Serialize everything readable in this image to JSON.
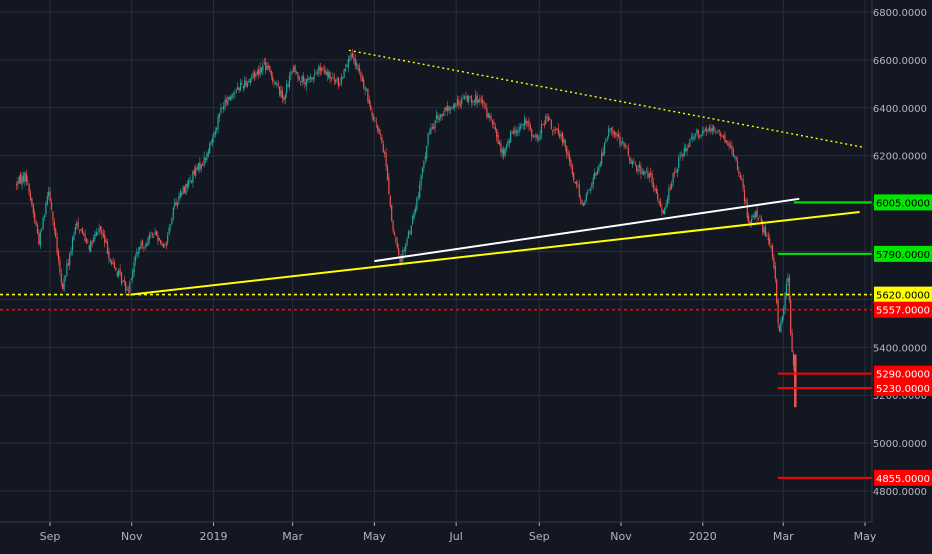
{
  "colors": {
    "background": "#131722",
    "grid": "#2a2e39",
    "axis_text": "#b2b5be",
    "candle_up": "#26a69a",
    "candle_down": "#ef5350",
    "support_yellow": "#ffff00",
    "support_white": "#ffffff",
    "level_green": "#00e600",
    "level_red": "#ff0000"
  },
  "chart_data": {
    "type": "candlestick",
    "title": "",
    "xlabel": "",
    "ylabel": "",
    "ylim": [
      4760,
      6840
    ],
    "grid": true,
    "x_ticks": [
      "Sep",
      "Nov",
      "2019",
      "Mar",
      "May",
      "Jul",
      "Sep",
      "Nov",
      "2020",
      "Mar",
      "May"
    ],
    "y_ticks": [
      "6800.0000",
      "6600.0000",
      "6400.0000",
      "6200.0000",
      "6000.0000",
      "5800.0000",
      "5600.0000",
      "5400.0000",
      "5200.0000",
      "5000.0000",
      "4800.0000"
    ],
    "close_path": [
      [
        "2018-08-06",
        6080
      ],
      [
        "2018-08-14",
        6120
      ],
      [
        "2018-08-24",
        5840
      ],
      [
        "2018-08-31",
        6070
      ],
      [
        "2018-09-10",
        5640
      ],
      [
        "2018-09-21",
        5920
      ],
      [
        "2018-10-01",
        5820
      ],
      [
        "2018-10-08",
        5900
      ],
      [
        "2018-10-18",
        5740
      ],
      [
        "2018-10-29",
        5640
      ],
      [
        "2018-11-05",
        5800
      ],
      [
        "2018-11-18",
        5880
      ],
      [
        "2018-11-26",
        5820
      ],
      [
        "2018-12-03",
        6000
      ],
      [
        "2018-12-17",
        6120
      ],
      [
        "2018-12-27",
        6200
      ],
      [
        "2019-01-07",
        6400
      ],
      [
        "2019-01-18",
        6480
      ],
      [
        "2019-01-28",
        6520
      ],
      [
        "2019-02-08",
        6580
      ],
      [
        "2019-02-15",
        6520
      ],
      [
        "2019-02-22",
        6440
      ],
      [
        "2019-03-01",
        6560
      ],
      [
        "2019-03-11",
        6500
      ],
      [
        "2019-03-21",
        6560
      ],
      [
        "2019-04-05",
        6500
      ],
      [
        "2019-04-12",
        6620
      ],
      [
        "2019-04-19",
        6560
      ],
      [
        "2019-04-26",
        6440
      ],
      [
        "2019-05-02",
        6340
      ],
      [
        "2019-05-09",
        6200
      ],
      [
        "2019-05-15",
        5880
      ],
      [
        "2019-05-20",
        5760
      ],
      [
        "2019-05-27",
        5880
      ],
      [
        "2019-06-03",
        6040
      ],
      [
        "2019-06-10",
        6280
      ],
      [
        "2019-06-17",
        6360
      ],
      [
        "2019-06-27",
        6400
      ],
      [
        "2019-07-08",
        6440
      ],
      [
        "2019-07-15",
        6440
      ],
      [
        "2019-07-22",
        6400
      ],
      [
        "2019-07-29",
        6320
      ],
      [
        "2019-08-05",
        6200
      ],
      [
        "2019-08-12",
        6300
      ],
      [
        "2019-08-22",
        6340
      ],
      [
        "2019-08-30",
        6260
      ],
      [
        "2019-09-06",
        6360
      ],
      [
        "2019-09-13",
        6300
      ],
      [
        "2019-09-20",
        6260
      ],
      [
        "2019-09-27",
        6100
      ],
      [
        "2019-10-04",
        6000
      ],
      [
        "2019-10-15",
        6150
      ],
      [
        "2019-10-24",
        6320
      ],
      [
        "2019-11-01",
        6260
      ],
      [
        "2019-11-11",
        6160
      ],
      [
        "2019-11-22",
        6120
      ],
      [
        "2019-12-02",
        5960
      ],
      [
        "2019-12-09",
        6100
      ],
      [
        "2019-12-16",
        6200
      ],
      [
        "2019-12-26",
        6300
      ],
      [
        "2020-01-02",
        6300
      ],
      [
        "2020-01-09",
        6320
      ],
      [
        "2020-01-16",
        6280
      ],
      [
        "2020-01-23",
        6220
      ],
      [
        "2020-01-30",
        6100
      ],
      [
        "2020-02-04",
        5920
      ],
      [
        "2020-02-10",
        5970
      ],
      [
        "2020-02-17",
        5860
      ],
      [
        "2020-02-21",
        5820
      ],
      [
        "2020-02-24",
        5680
      ],
      [
        "2020-02-27",
        5450
      ],
      [
        "2020-03-02",
        5600
      ],
      [
        "2020-03-05",
        5720
      ],
      [
        "2020-03-06",
        5480
      ],
      [
        "2020-03-09",
        5300
      ]
    ],
    "annotations": {
      "price_levels": [
        {
          "label": "6005.0000",
          "value": 6005,
          "color": "green",
          "start": "2020-03-09"
        },
        {
          "label": "5790.0000",
          "value": 5790,
          "color": "green",
          "start": "2020-02-26"
        },
        {
          "label": "5620.0000",
          "value": 5620,
          "color": "yellow",
          "style": "dotted"
        },
        {
          "label": "5557.0000",
          "value": 5557,
          "color": "red",
          "style": "dotted"
        },
        {
          "label": "5290.0000",
          "value": 5290,
          "color": "red",
          "start": "2020-02-26"
        },
        {
          "label": "5230.0000",
          "value": 5230,
          "color": "red",
          "start": "2020-02-26"
        },
        {
          "label": "4855.0000",
          "value": 4855,
          "color": "red",
          "start": "2020-02-26"
        }
      ],
      "trendlines": [
        {
          "color": "yellow",
          "style": "dotted",
          "points": [
            [
              "2019-04-12",
              6640
            ],
            [
              "2020-04-30",
              6235
            ]
          ]
        },
        {
          "color": "yellow",
          "style": "solid",
          "points": [
            [
              "2018-10-31",
              5620
            ],
            [
              "2020-04-27",
              5965
            ]
          ]
        },
        {
          "color": "white",
          "style": "solid",
          "points": [
            [
              "2019-05-01",
              5760
            ],
            [
              "2020-03-13",
              6020
            ]
          ]
        }
      ],
      "spike": {
        "date": "2020-03-10",
        "high": 5370,
        "low": 5150
      }
    }
  }
}
